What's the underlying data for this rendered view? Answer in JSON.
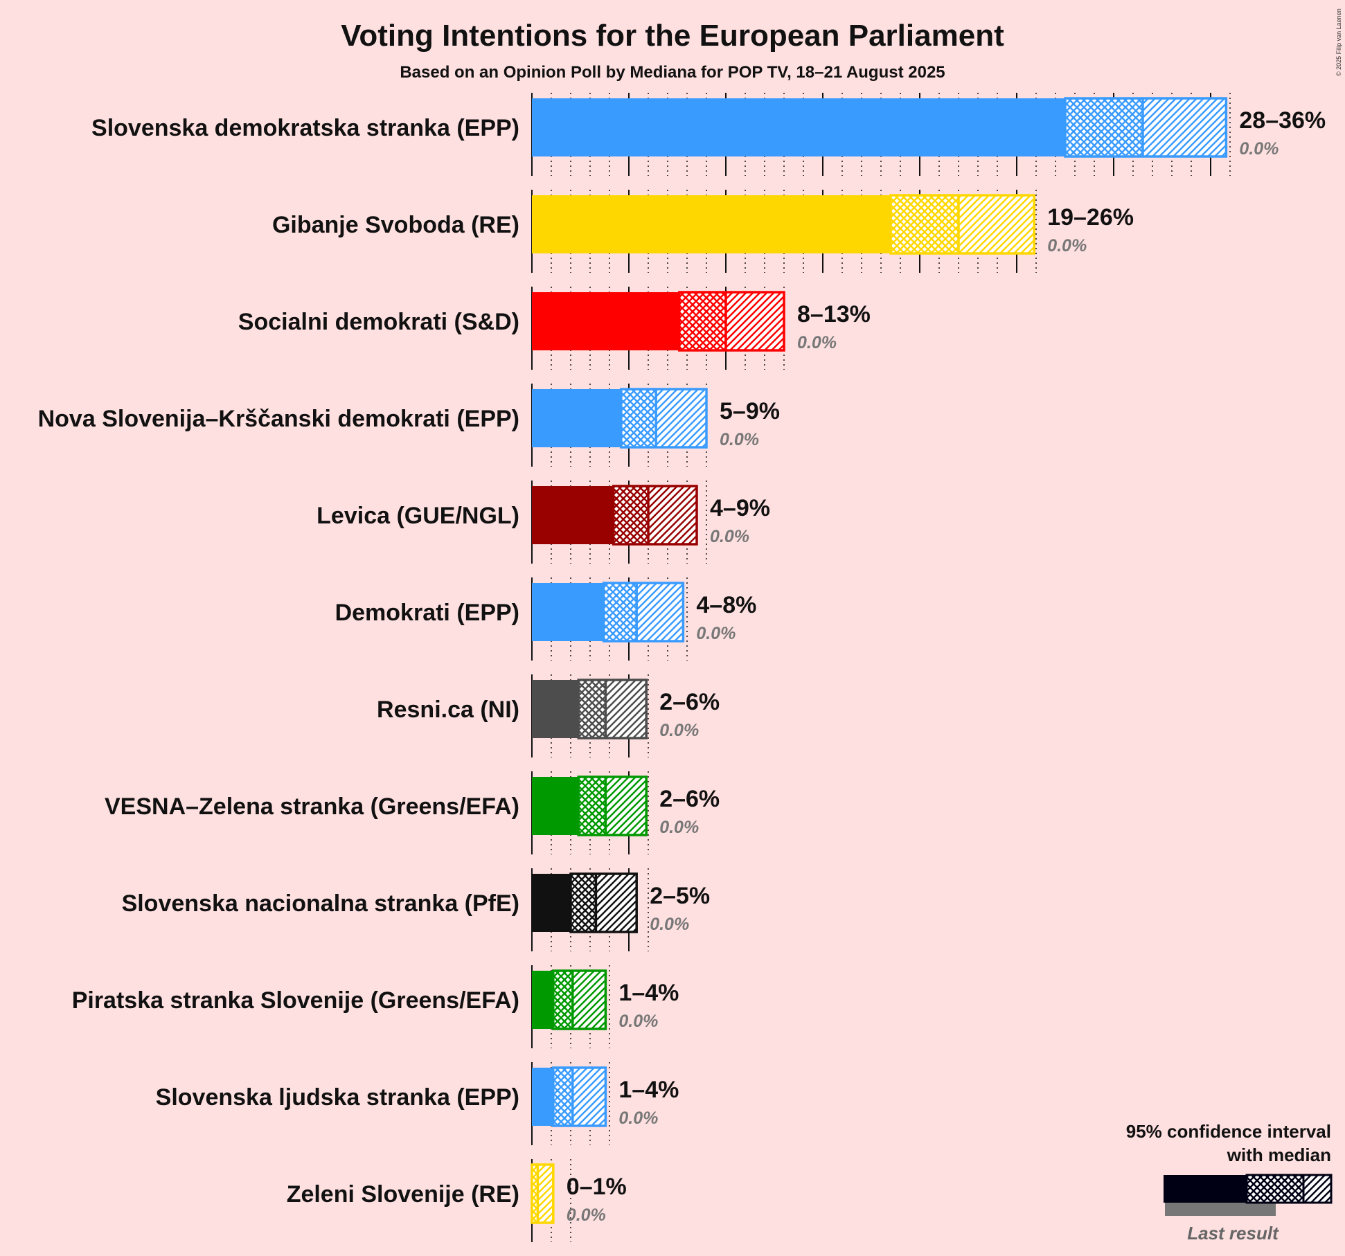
{
  "chart_data": {
    "type": "bar",
    "orientation": "horizontal",
    "title": "Voting Intentions for the European Parliament",
    "subtitle": "Based on an Opinion Poll by Mediana for POP TV, 18–21 August 2025",
    "copyright": "© 2025 Filip van Laenen",
    "x_unit": "%",
    "xlim": [
      0,
      36
    ],
    "grid": "dotted minor lines at each 1%, solid major lines at each 5%",
    "series": [
      {
        "party": "Slovenska demokratska stranka (EPP)",
        "color": "#3A9BFF",
        "ci_low": 27.5,
        "median": 31.5,
        "ci_high": 35.8,
        "range_label": "28–36%",
        "last_result_label": "0.0%",
        "last_result": 0.0
      },
      {
        "party": "Gibanje Svoboda (RE)",
        "color": "#FFD700",
        "ci_low": 18.5,
        "median": 22.0,
        "ci_high": 25.9,
        "range_label": "19–26%",
        "last_result_label": "0.0%",
        "last_result": 0.0
      },
      {
        "party": "Socialni demokrati (S&D)",
        "color": "#FF0000",
        "ci_low": 7.6,
        "median": 10.0,
        "ci_high": 13.0,
        "range_label": "8–13%",
        "last_result_label": "0.0%",
        "last_result": 0.0
      },
      {
        "party": "Nova Slovenija–Krščanski demokrati (EPP)",
        "color": "#3A9BFF",
        "ci_low": 4.6,
        "median": 6.4,
        "ci_high": 9.0,
        "range_label": "5–9%",
        "last_result_label": "0.0%",
        "last_result": 0.0
      },
      {
        "party": "Levica (GUE/NGL)",
        "color": "#990000",
        "ci_low": 4.2,
        "median": 6.0,
        "ci_high": 8.5,
        "range_label": "4–9%",
        "last_result_label": "0.0%",
        "last_result": 0.0
      },
      {
        "party": "Demokrati (EPP)",
        "color": "#3A9BFF",
        "ci_low": 3.7,
        "median": 5.4,
        "ci_high": 7.8,
        "range_label": "4–8%",
        "last_result_label": "0.0%",
        "last_result": 0.0
      },
      {
        "party": "Resni.ca (NI)",
        "color": "#4D4D4D",
        "ci_low": 2.4,
        "median": 3.8,
        "ci_high": 5.9,
        "range_label": "2–6%",
        "last_result_label": "0.0%",
        "last_result": 0.0
      },
      {
        "party": "VESNA–Zelena stranka (Greens/EFA)",
        "color": "#009900",
        "ci_low": 2.4,
        "median": 3.8,
        "ci_high": 5.9,
        "range_label": "2–6%",
        "last_result_label": "0.0%",
        "last_result": 0.0
      },
      {
        "party": "Slovenska nacionalna stranka (PfE)",
        "color": "#111111",
        "ci_low": 2.0,
        "median": 3.3,
        "ci_high": 5.4,
        "range_label": "2–5%",
        "last_result_label": "0.0%",
        "last_result": 0.0
      },
      {
        "party": "Piratska stranka Slovenije (Greens/EFA)",
        "color": "#009900",
        "ci_low": 1.1,
        "median": 2.1,
        "ci_high": 3.8,
        "range_label": "1–4%",
        "last_result_label": "0.0%",
        "last_result": 0.0
      },
      {
        "party": "Slovenska ljudska stranka (EPP)",
        "color": "#3A9BFF",
        "ci_low": 1.1,
        "median": 2.1,
        "ci_high": 3.8,
        "range_label": "1–4%",
        "last_result_label": "0.0%",
        "last_result": 0.0
      },
      {
        "party": "Zeleni Slovenije (RE)",
        "color": "#FFD700",
        "ci_low": 0.0,
        "median": 0.3,
        "ci_high": 1.1,
        "range_label": "0–1%",
        "last_result_label": "0.0%",
        "last_result": 0.0
      }
    ]
  },
  "legend": {
    "line1": "95% confidence interval",
    "line2": "with median",
    "last_result": "Last result",
    "colors": {
      "bar": "#000014",
      "last": "#777777"
    }
  }
}
